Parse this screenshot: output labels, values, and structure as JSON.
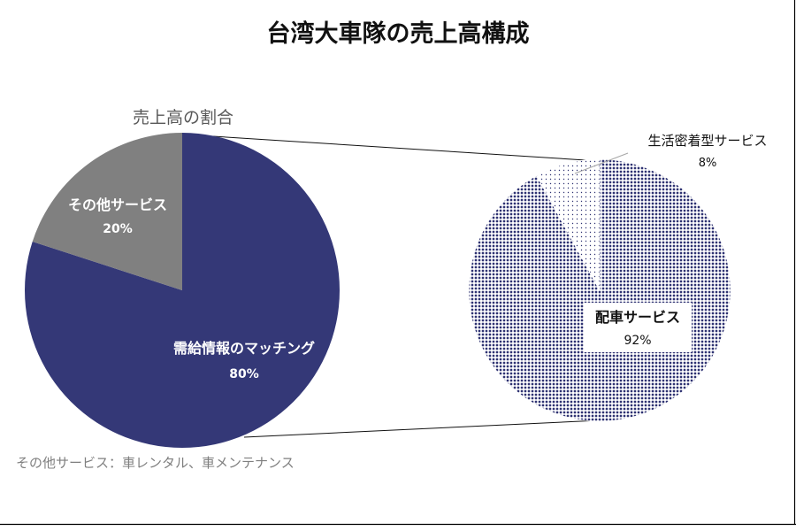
{
  "colors": {
    "main_navy": "#343877",
    "main_gray": "#808080",
    "dot_navy": "#2e3272",
    "note_gray": "#7f7f7f",
    "border": "#000000"
  },
  "chart_data": [
    {
      "type": "pie",
      "title": "台湾大車隊の売上高構成",
      "subtitle": "売上高の割合",
      "slices": [
        {
          "label": "需給情報のマッチング",
          "value": 80,
          "value_label": "80%",
          "color": "#343877"
        },
        {
          "label": "その他サービス",
          "value": 20,
          "value_label": "20%",
          "color": "#808080"
        }
      ]
    },
    {
      "type": "pie",
      "title": "",
      "slices": [
        {
          "label": "配車サービス",
          "value": 92,
          "value_label": "92%",
          "fill": "dense-dots"
        },
        {
          "label": "生活密着型サービス",
          "value": 8,
          "value_label": "8%",
          "fill": "sparse-dots"
        }
      ]
    }
  ],
  "footnote": "その他サービス：車レンタル、車メンテナンス"
}
